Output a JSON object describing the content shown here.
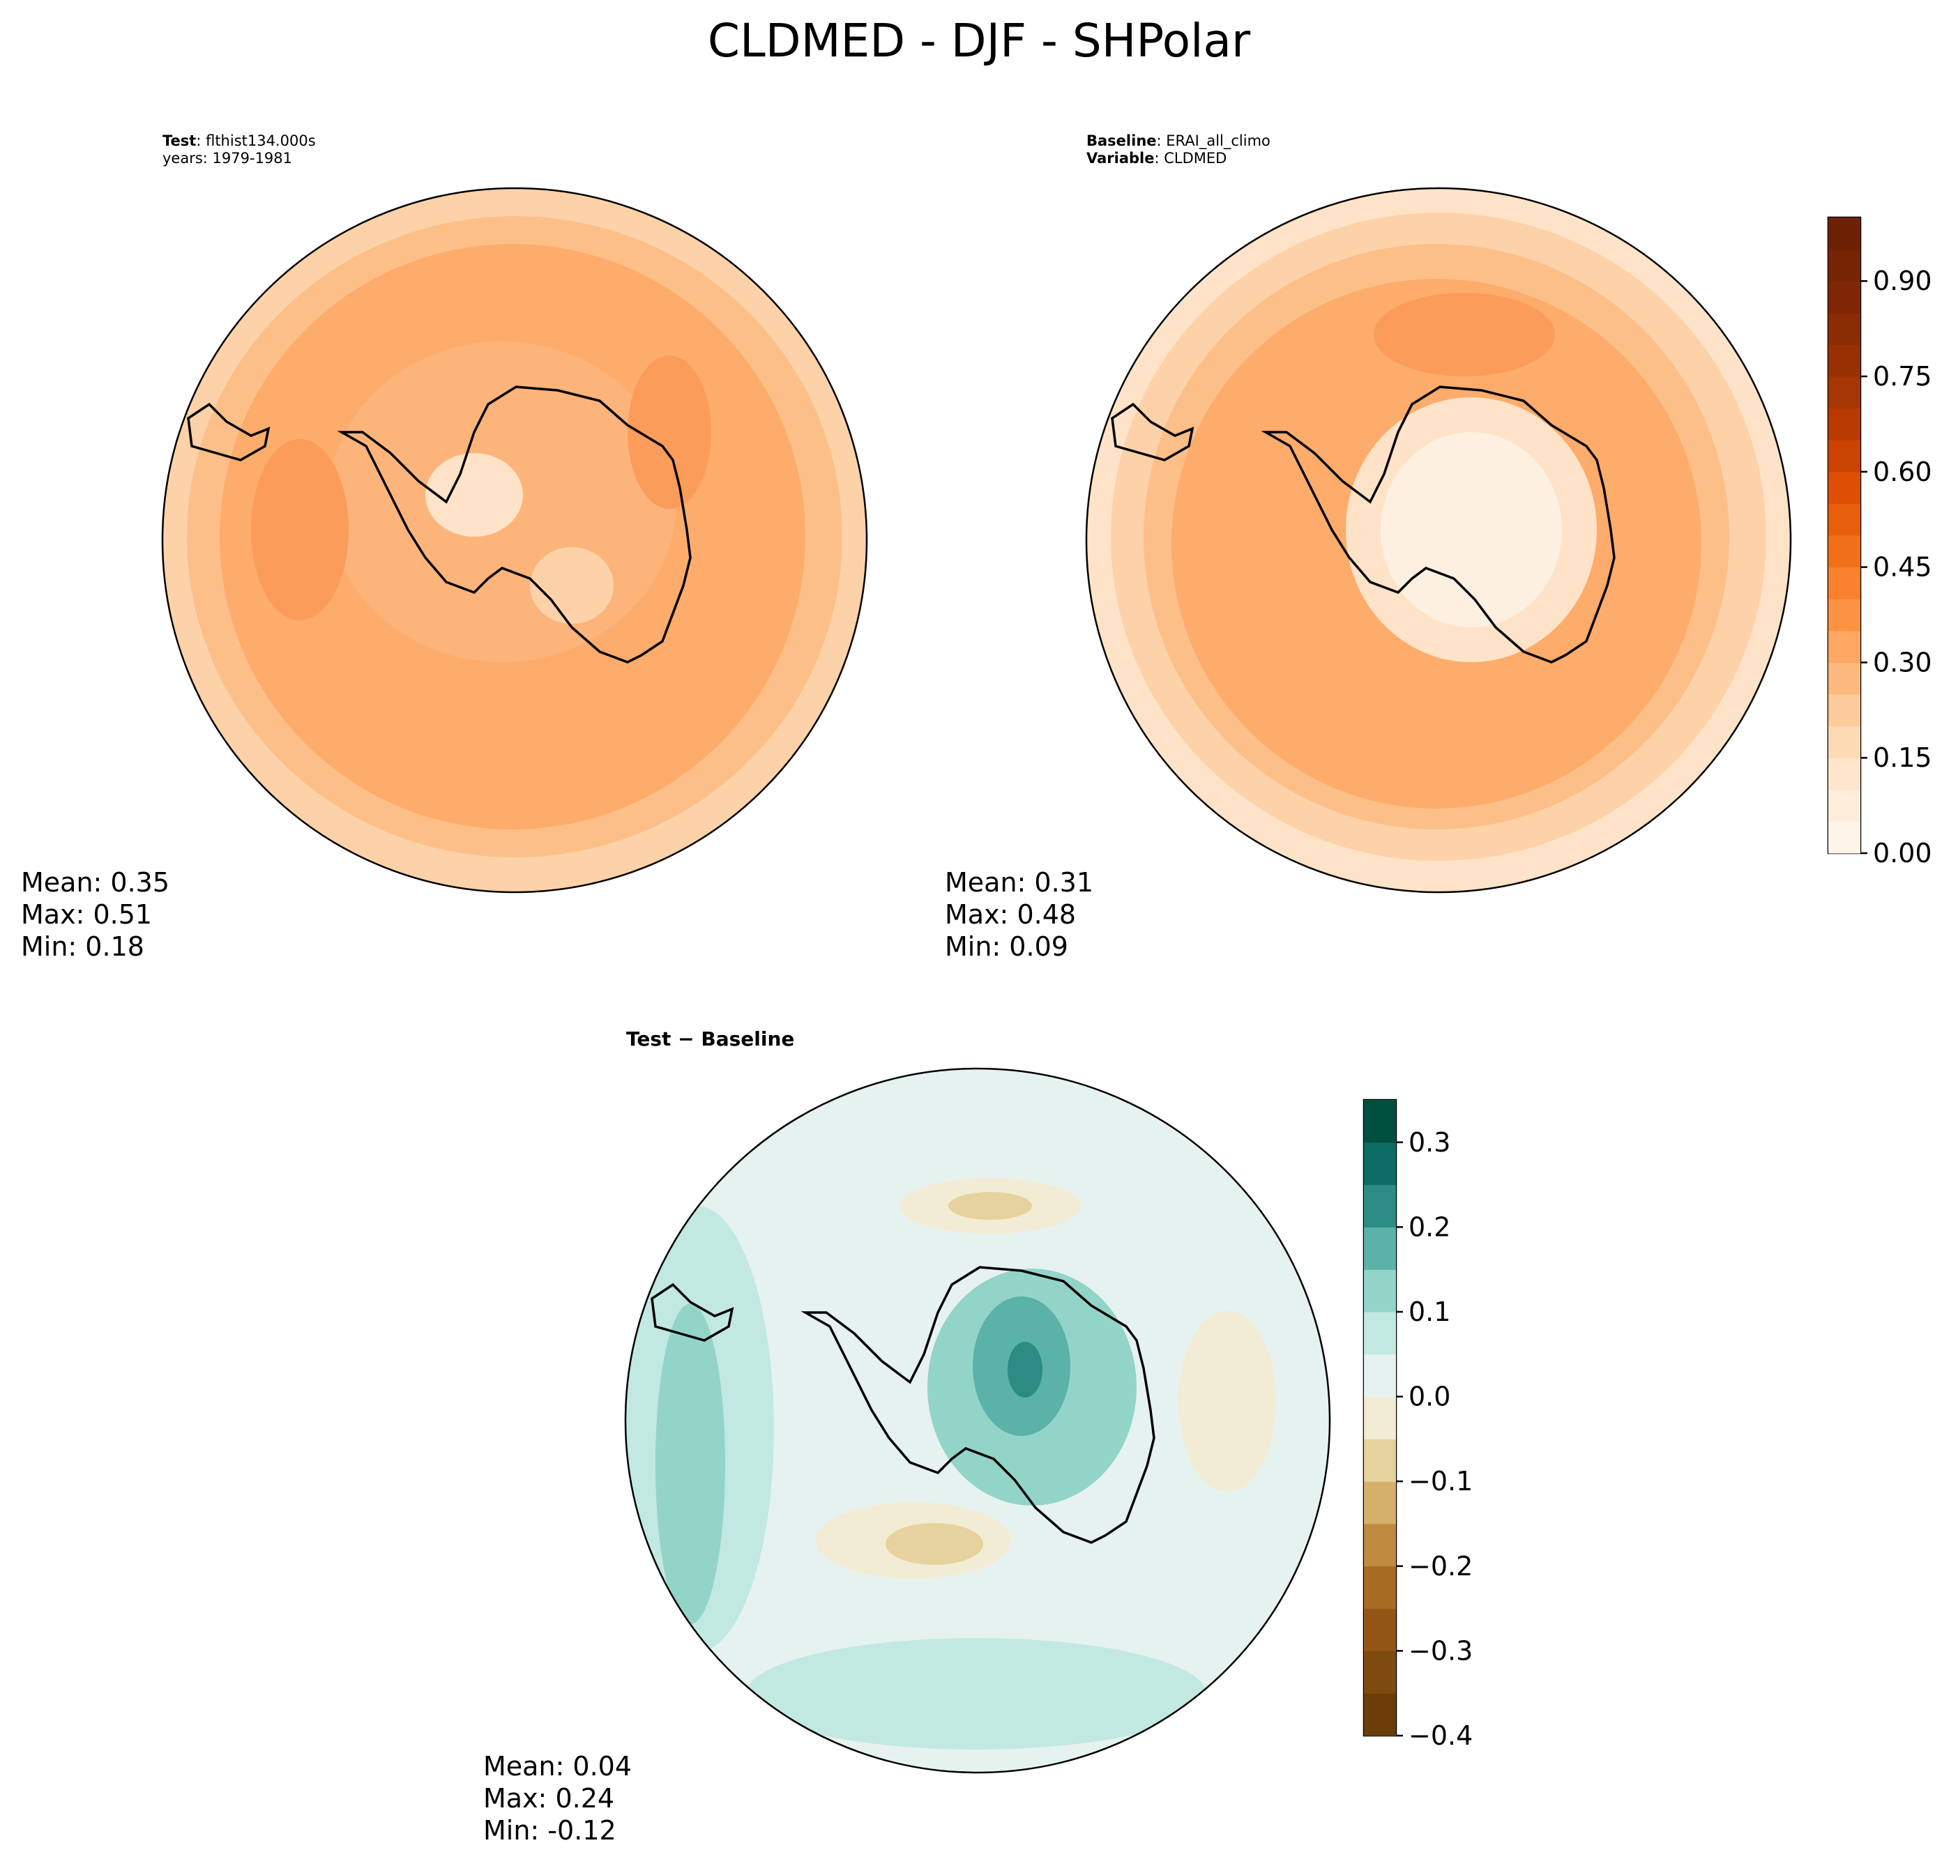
{
  "figure_title": "CLDMED - DJF - SHPolar",
  "panels": {
    "test": {
      "label_key": "Test",
      "label_value": "flthist134.000s",
      "years_line": "years: 1979-1981",
      "stats": {
        "mean": "Mean:  0.35",
        "max": "Max:  0.51",
        "min": "Min:  0.18"
      }
    },
    "baseline": {
      "label_key": "Baseline",
      "label_value": "ERAI_all_climo",
      "variable_key": "Variable",
      "variable_value": "CLDMED",
      "stats": {
        "mean": "Mean:  0.31",
        "max": "Max:  0.48",
        "min": "Min:  0.09"
      }
    },
    "diff": {
      "title": "Test − Baseline",
      "stats": {
        "mean": "Mean:  0.04",
        "max": "Max:  0.24",
        "min": "Min: -0.12"
      }
    }
  },
  "chart_data": [
    {
      "type": "heatmap",
      "title": "Test",
      "projection": "south-polar-stereographic",
      "summary": {
        "mean": 0.35,
        "max": 0.51,
        "min": 0.18
      },
      "colormap": "Oranges",
      "colorbar": {
        "levels": [
          0.0,
          0.05,
          0.1,
          0.15,
          0.2,
          0.25,
          0.3,
          0.35,
          0.4,
          0.45,
          0.5,
          0.55,
          0.6,
          0.65,
          0.7,
          0.75,
          0.8,
          0.85,
          0.9,
          0.95,
          1.0
        ]
      }
    },
    {
      "type": "heatmap",
      "title": "Baseline",
      "projection": "south-polar-stereographic",
      "summary": {
        "mean": 0.31,
        "max": 0.48,
        "min": 0.09
      },
      "colormap": "Oranges",
      "colorbar": {
        "levels": [
          0.0,
          0.05,
          0.1,
          0.15,
          0.2,
          0.25,
          0.3,
          0.35,
          0.4,
          0.45,
          0.5,
          0.55,
          0.6,
          0.65,
          0.7,
          0.75,
          0.8,
          0.85,
          0.9,
          0.95,
          1.0
        ],
        "ticks": [
          0.0,
          0.15,
          0.3,
          0.45,
          0.6,
          0.75,
          0.9
        ],
        "tick_labels": [
          "0.00",
          "0.15",
          "0.30",
          "0.45",
          "0.60",
          "0.75",
          "0.90"
        ],
        "colors": [
          "#fff5eb",
          "#feeddb",
          "#fee5cb",
          "#fdd9b4",
          "#fdca99",
          "#fdb97d",
          "#fda762",
          "#fd9243",
          "#f9802d",
          "#f3701b",
          "#e95e0d",
          "#de4e05",
          "#cb4302",
          "#b83902",
          "#a63603",
          "#973103",
          "#8a2c04",
          "#7f2704",
          "#772404",
          "#6e2104"
        ]
      },
      "range": [
        0.0,
        1.0
      ]
    },
    {
      "type": "heatmap",
      "title": "Test − Baseline",
      "projection": "south-polar-stereographic",
      "summary": {
        "mean": 0.04,
        "max": 0.24,
        "min": -0.12
      },
      "colormap": "BrBG",
      "colorbar": {
        "levels": [
          -0.4,
          -0.35,
          -0.3,
          -0.25,
          -0.2,
          -0.15,
          -0.1,
          -0.05,
          0.0,
          0.05,
          0.1,
          0.15,
          0.2,
          0.25,
          0.3,
          0.35
        ],
        "ticks": [
          -0.4,
          -0.3,
          -0.2,
          -0.1,
          0.0,
          0.1,
          0.2,
          0.3
        ],
        "tick_labels": [
          "−0.4",
          "−0.3",
          "−0.2",
          "−0.1",
          "0.0",
          "0.1",
          "0.2",
          "0.3"
        ],
        "colors": [
          "#6a3d09",
          "#7e4a0f",
          "#935616",
          "#a86b22",
          "#bf8b40",
          "#d4b06a",
          "#e6d29e",
          "#f3ecd5",
          "#e6f2f0",
          "#c2e8e2",
          "#93d4c9",
          "#5ab2a8",
          "#2a8c82",
          "#0b6d63",
          "#00503f"
        ]
      },
      "range": [
        -0.4,
        0.35
      ]
    }
  ]
}
